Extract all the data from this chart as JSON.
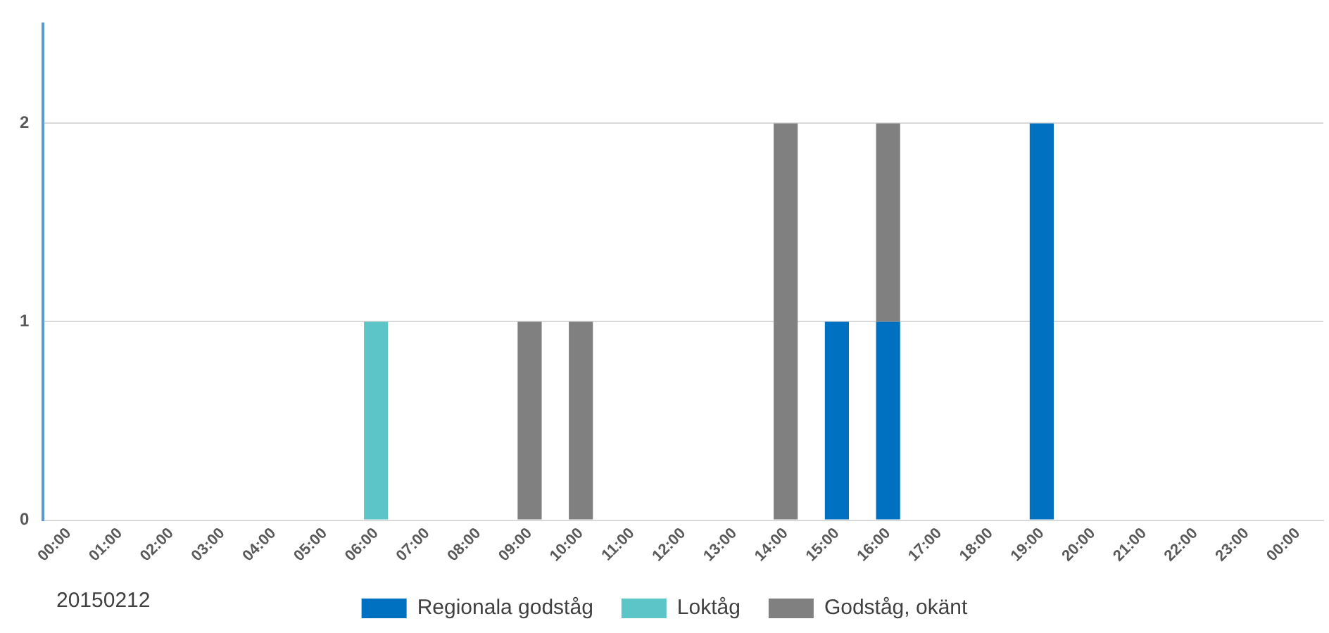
{
  "chart_data": {
    "type": "bar",
    "stacked": true,
    "categories": [
      "00:00",
      "01:00",
      "02:00",
      "03:00",
      "04:00",
      "05:00",
      "06:00",
      "07:00",
      "08:00",
      "09:00",
      "10:00",
      "11:00",
      "12:00",
      "13:00",
      "14:00",
      "15:00",
      "16:00",
      "17:00",
      "18:00",
      "19:00",
      "20:00",
      "21:00",
      "22:00",
      "23:00",
      "00:00"
    ],
    "series": [
      {
        "name": "Regionala godståg",
        "color": "#0070c0",
        "values": [
          0,
          0,
          0,
          0,
          0,
          0,
          0,
          0,
          0,
          0,
          0,
          0,
          0,
          0,
          0,
          1,
          1,
          0,
          0,
          2,
          0,
          0,
          0,
          0,
          0
        ]
      },
      {
        "name": "Loktåg",
        "color": "#5bc5c8",
        "values": [
          0,
          0,
          0,
          0,
          0,
          0,
          1,
          0,
          0,
          0,
          0,
          0,
          0,
          0,
          0,
          0,
          0,
          0,
          0,
          0,
          0,
          0,
          0,
          0,
          0
        ]
      },
      {
        "name": "Godståg, okänt",
        "color": "#808080",
        "values": [
          0,
          0,
          0,
          0,
          0,
          0,
          0,
          0,
          0,
          1,
          1,
          0,
          0,
          0,
          2,
          0,
          1,
          0,
          0,
          0,
          0,
          0,
          0,
          0,
          0
        ]
      }
    ],
    "ylim": [
      0,
      2.5
    ],
    "yticks": [
      0,
      1,
      2
    ],
    "grid": "y",
    "legend": "bottom",
    "annotations": [
      "20150212"
    ]
  }
}
